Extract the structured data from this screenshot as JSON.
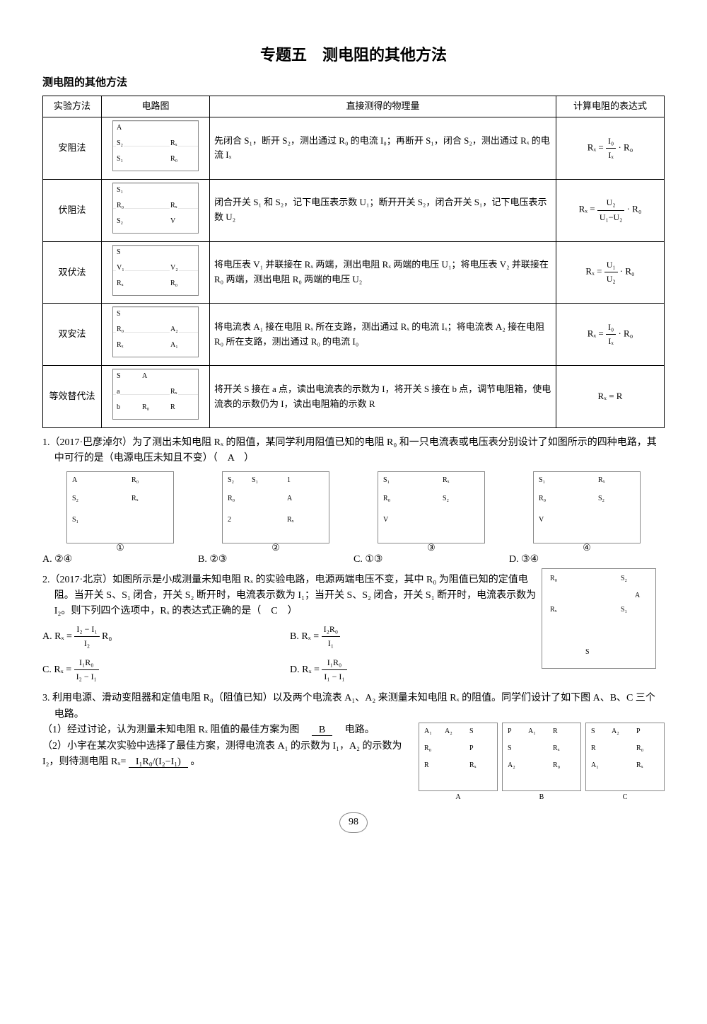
{
  "page": {
    "title": "专题五　测电阻的其他方法",
    "subtitle": "测电阻的其他方法",
    "number": "98"
  },
  "table": {
    "headers": [
      "实验方法",
      "电路图",
      "直接测得的物理量",
      "计算电阻的表达式"
    ],
    "rows": [
      {
        "method": "安阻法",
        "circuit_labels": [
          "A",
          "S₂",
          "Rₓ",
          "S₁",
          "R₀"
        ],
        "desc": "先闭合 S₁，断开 S₂，测出通过 R₀ 的电流 I₀；再断开 S₁，闭合 S₂，测出通过 Rₓ 的电流 Iₓ",
        "formula_num": "I₀",
        "formula_den": "Iₓ",
        "formula_tail": " · R₀",
        "formula_lhs": "Rₓ = "
      },
      {
        "method": "伏阻法",
        "circuit_labels": [
          "S₁",
          "R₀",
          "Rₓ",
          "S₂",
          "V"
        ],
        "desc": "闭合开关 S₁ 和 S₂，记下电压表示数 U₁；断开开关 S₂，闭合开关 S₁，记下电压表示数 U₂",
        "formula_num": "U₂",
        "formula_den": "U₁−U₂",
        "formula_tail": " · R₀",
        "formula_lhs": "Rₓ = "
      },
      {
        "method": "双伏法",
        "circuit_labels": [
          "S",
          "V₁",
          "V₂",
          "Rₓ",
          "R₀"
        ],
        "desc": "将电压表 V₁ 并联接在 Rₓ 两端，测出电阻 Rₓ 两端的电压 U₁；将电压表 V₂ 并联接在 R₀ 两端，测出电阻 R₀ 两端的电压 U₂",
        "formula_num": "U₁",
        "formula_den": "U₂",
        "formula_tail": " · R₀",
        "formula_lhs": "Rₓ = "
      },
      {
        "method": "双安法",
        "circuit_labels": [
          "S",
          "R₀",
          "A₂",
          "Rₓ",
          "A₁"
        ],
        "desc": "将电流表 A₁ 接在电阻 Rₓ 所在支路，测出通过 Rₓ 的电流 Iₓ；将电流表 A₂ 接在电阻 R₀ 所在支路，测出通过 R₀ 的电流 I₀",
        "formula_num": "I₀",
        "formula_den": "Iₓ",
        "formula_tail": " · R₀",
        "formula_lhs": "Rₓ = "
      },
      {
        "method": "等效替代法",
        "circuit_labels": [
          "S",
          "a",
          "Rₓ",
          "b",
          "R",
          "A",
          "R₀"
        ],
        "desc": "将开关 S 接在 a 点，读出电流表的示数为 I，将开关 S 接在 b 点，调节电阻箱，使电流表的示数仍为 I，读出电阻箱的示数 R",
        "formula_plain": "Rₓ = R"
      }
    ]
  },
  "q1": {
    "stem": "1.（2017·巴彦淖尔）为了测出未知电阻 Rₓ 的阻值，某同学利用阻值已知的电阻 R₀ 和一只电流表或电压表分别设计了如图所示的四种电路，其中可行的是（电源电压未知且不变）（　A　）",
    "circ_labels": [
      [
        "A",
        "R₀",
        "S₂",
        "Rₓ",
        "S₁",
        "①"
      ],
      [
        "S₂",
        "1",
        "R₀",
        "A",
        "2",
        "Rₓ",
        "S₁",
        "②"
      ],
      [
        "S₁",
        "Rₓ",
        "R₀",
        "S₂",
        "V",
        "③"
      ],
      [
        "S₁",
        "Rₓ",
        "R₀",
        "S₂",
        "V",
        "④"
      ]
    ],
    "opts": [
      "A. ②④",
      "B. ②③",
      "C. ①③",
      "D. ③④"
    ]
  },
  "q2": {
    "stem": "2.（2017·北京）如图所示是小成测量未知电阻 Rₓ 的实验电路，电源两端电压不变，其中 R₀ 为阻值已知的定值电阻。当开关 S、S₁ 闭合，开关 S₂ 断开时，电流表示数为 I₁；当开关 S、S₂ 闭合，开关 S₁ 断开时，电流表示数为 I₂。则下列四个选项中，Rₓ 的表达式正确的是（　C　）",
    "fig_labels": [
      "R₀",
      "S₂",
      "A",
      "Rₓ",
      "S₁",
      "S"
    ],
    "opts": {
      "A_lhs": "A. Rₓ = ",
      "A_num": "I₂ − I₁",
      "A_den": "I₂",
      "A_tail": " R₀",
      "B_lhs": "B. Rₓ = ",
      "B_num": "I₂R₀",
      "B_den": "I₁",
      "B_tail": "",
      "C_lhs": "C. Rₓ = ",
      "C_num": "I₁R₀",
      "C_den": "I₂ − I₁",
      "C_tail": "",
      "D_lhs": "D. Rₓ = ",
      "D_num": "I₁R₀",
      "D_den": "I₁ − I₁",
      "D_tail": ""
    }
  },
  "q3": {
    "stem": "3. 利用电源、滑动变阻器和定值电阻 R₀（阻值已知）以及两个电流表 A₁、A₂ 来测量未知电阻 Rₓ 的阻值。同学们设计了如下图 A、B、C 三个电路。",
    "p1a": "（1）经过讨论，认为测量未知电阻 Rₓ 阻值的最佳方案为图　",
    "p1blank": "B",
    "p1b": "　电路。",
    "p2a": "（2）小宇在某次实验中选择了最佳方案，测得电流表 A₁ 的示数为 I₁，A₂ 的示数为 I₂，则待测电阻 Rₓ=",
    "p2blank": "I₁R₀/(I₂−I₁)",
    "p2b": "。",
    "fig_labels": [
      [
        "A₁",
        "S",
        "R₀",
        "P",
        "R",
        "Rₓ",
        "A₂",
        "A"
      ],
      [
        "P",
        "R",
        "S",
        "Rₓ",
        "A₂",
        "R₀",
        "A₁",
        "B"
      ],
      [
        "S",
        "P",
        "R",
        "R₀",
        "A₁",
        "Rₓ",
        "A₂",
        "C"
      ]
    ]
  }
}
